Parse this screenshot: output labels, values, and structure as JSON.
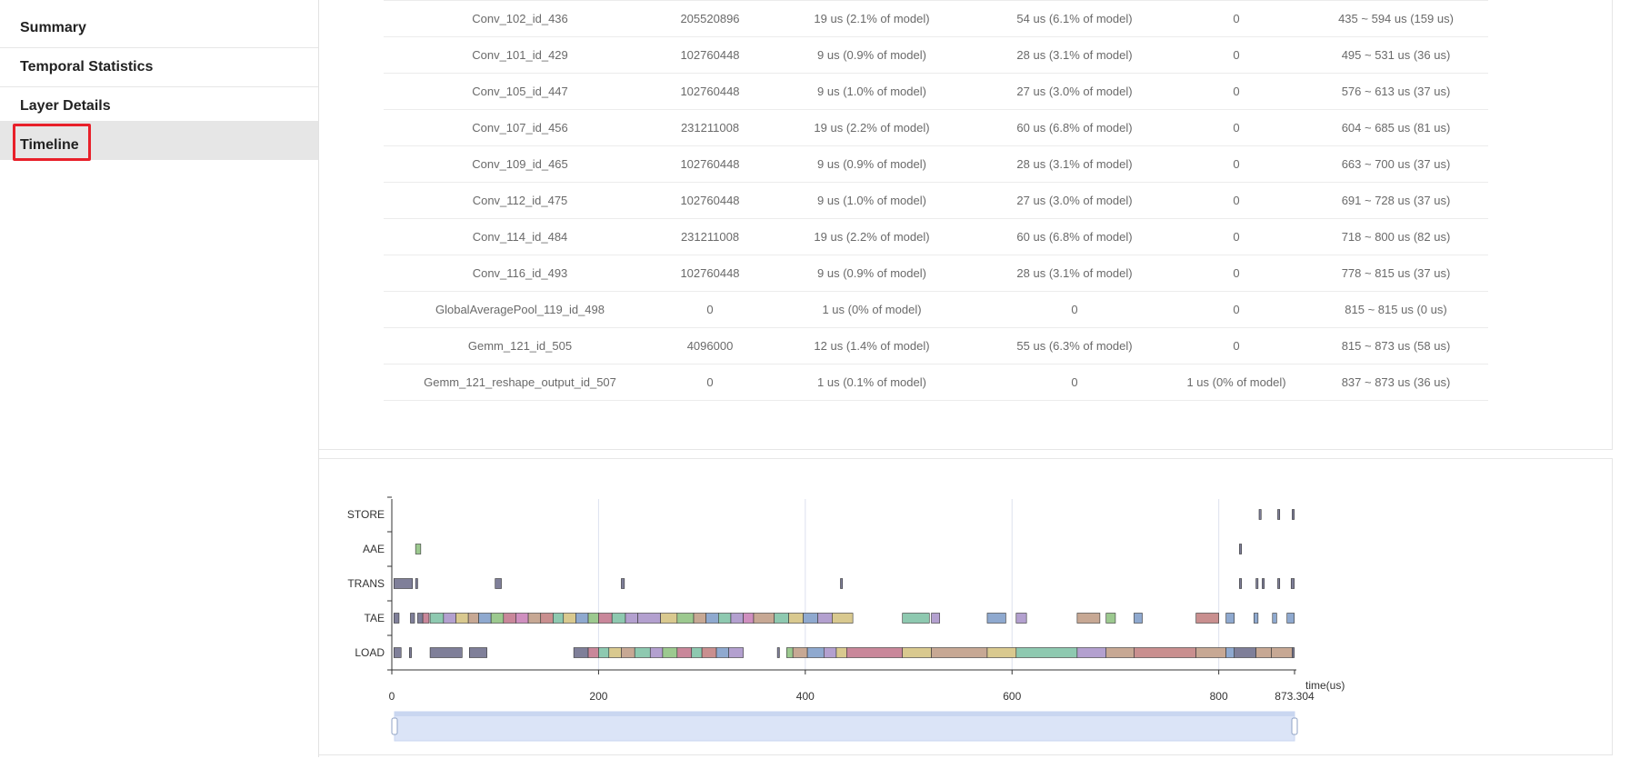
{
  "sidebar": {
    "items": [
      {
        "label": "Summary"
      },
      {
        "label": "Temporal Statistics"
      },
      {
        "label": "Layer Details"
      },
      {
        "label": "Timeline"
      }
    ],
    "active_index": 3
  },
  "layer_table": {
    "rows": [
      [
        "Conv_102_id_436",
        "205520896",
        "19 us (2.1% of model)",
        "54 us (6.1% of model)",
        "0",
        "435 ~ 594 us (159 us)"
      ],
      [
        "Conv_101_id_429",
        "102760448",
        "9 us (0.9% of model)",
        "28 us (3.1% of model)",
        "0",
        "495 ~ 531 us (36 us)"
      ],
      [
        "Conv_105_id_447",
        "102760448",
        "9 us (1.0% of model)",
        "27 us (3.0% of model)",
        "0",
        "576 ~ 613 us (37 us)"
      ],
      [
        "Conv_107_id_456",
        "231211008",
        "19 us (2.2% of model)",
        "60 us (6.8% of model)",
        "0",
        "604 ~ 685 us (81 us)"
      ],
      [
        "Conv_109_id_465",
        "102760448",
        "9 us (0.9% of model)",
        "28 us (3.1% of model)",
        "0",
        "663 ~ 700 us (37 us)"
      ],
      [
        "Conv_112_id_475",
        "102760448",
        "9 us (1.0% of model)",
        "27 us (3.0% of model)",
        "0",
        "691 ~ 728 us (37 us)"
      ],
      [
        "Conv_114_id_484",
        "231211008",
        "19 us (2.2% of model)",
        "60 us (6.8% of model)",
        "0",
        "718 ~ 800 us (82 us)"
      ],
      [
        "Conv_116_id_493",
        "102760448",
        "9 us (0.9% of model)",
        "28 us (3.1% of model)",
        "0",
        "778 ~ 815 us (37 us)"
      ],
      [
        "GlobalAveragePool_119_id_498",
        "0",
        "1 us (0% of model)",
        "0",
        "0",
        "815 ~ 815 us (0 us)"
      ],
      [
        "Gemm_121_id_505",
        "4096000",
        "12 us (1.4% of model)",
        "55 us (6.3% of model)",
        "0",
        "815 ~ 873 us (58 us)"
      ],
      [
        "Gemm_121_reshape_output_id_507",
        "0",
        "1 us (0.1% of model)",
        "0",
        "1 us (0% of model)",
        "837 ~ 873 us (36 us)"
      ]
    ]
  },
  "timeline": {
    "xaxis_name": "time(us)",
    "tick_labels": [
      "0",
      "200",
      "400",
      "600",
      "800",
      "873.304"
    ],
    "tick_values": [
      0,
      200,
      400,
      600,
      800,
      873.304
    ],
    "x_max": 873.304,
    "lanes": [
      "STORE",
      "AAE",
      "TRANS",
      "TAE",
      "LOAD"
    ],
    "palette": [
      "#7f7f99",
      "#c9879a",
      "#8ec9b0",
      "#b3a0cf",
      "#d9c98f",
      "#c7a894",
      "#8fa9cf",
      "#9cc98f",
      "#cf8fbf",
      "#c98f8f",
      "#8fbfc9",
      "#b5c98f"
    ],
    "bars": {
      "STORE": [
        [
          839,
          841
        ],
        [
          857,
          859
        ],
        [
          871,
          873
        ]
      ],
      "AAE": [
        [
          23,
          28,
          7
        ],
        [
          820,
          822,
          0
        ]
      ],
      "TRANS": [
        [
          2,
          20,
          0
        ],
        [
          23,
          25,
          0
        ],
        [
          100,
          106,
          0
        ],
        [
          222,
          225,
          0
        ],
        [
          434,
          436,
          0
        ],
        [
          820,
          822,
          0
        ],
        [
          836,
          838,
          0
        ],
        [
          842,
          844,
          0
        ],
        [
          857,
          859,
          0
        ],
        [
          870,
          873,
          0
        ]
      ],
      "TAE": [
        [
          2,
          7,
          0
        ],
        [
          18,
          22,
          0
        ],
        [
          25,
          30,
          0
        ],
        [
          30,
          36,
          1
        ],
        [
          37,
          50,
          2
        ],
        [
          50,
          62,
          3
        ],
        [
          62,
          74,
          4
        ],
        [
          74,
          84,
          5
        ],
        [
          84,
          96,
          6
        ],
        [
          96,
          108,
          7
        ],
        [
          108,
          120,
          1
        ],
        [
          120,
          132,
          8
        ],
        [
          132,
          144,
          5
        ],
        [
          144,
          156,
          9
        ],
        [
          156,
          166,
          2
        ],
        [
          166,
          178,
          4
        ],
        [
          178,
          190,
          6
        ],
        [
          190,
          200,
          7
        ],
        [
          200,
          213,
          1
        ],
        [
          213,
          226,
          2
        ],
        [
          226,
          238,
          3
        ],
        [
          238,
          260,
          3
        ],
        [
          260,
          276,
          4
        ],
        [
          276,
          292,
          7
        ],
        [
          292,
          304,
          5
        ],
        [
          304,
          316,
          6
        ],
        [
          316,
          328,
          2
        ],
        [
          328,
          340,
          3
        ],
        [
          340,
          350,
          8
        ],
        [
          350,
          370,
          5
        ],
        [
          370,
          384,
          2
        ],
        [
          384,
          398,
          4
        ],
        [
          398,
          412,
          6
        ],
        [
          412,
          426,
          3
        ],
        [
          426,
          446,
          4
        ],
        [
          494,
          520,
          2
        ],
        [
          522,
          530,
          3
        ],
        [
          576,
          594,
          6
        ],
        [
          604,
          614,
          3
        ],
        [
          663,
          685,
          5
        ],
        [
          691,
          700,
          7
        ],
        [
          718,
          726,
          6
        ],
        [
          778,
          800,
          9
        ],
        [
          807,
          815,
          6
        ],
        [
          834,
          838,
          6
        ],
        [
          852,
          856,
          6
        ],
        [
          866,
          873,
          6
        ]
      ],
      "LOAD": [
        [
          2,
          9,
          0
        ],
        [
          17,
          19,
          0
        ],
        [
          37,
          68,
          0
        ],
        [
          75,
          92,
          0
        ],
        [
          176,
          190,
          0
        ],
        [
          190,
          200,
          1
        ],
        [
          200,
          210,
          2
        ],
        [
          210,
          222,
          4
        ],
        [
          222,
          235,
          5
        ],
        [
          235,
          250,
          2
        ],
        [
          250,
          262,
          3
        ],
        [
          262,
          276,
          7
        ],
        [
          276,
          290,
          1
        ],
        [
          290,
          300,
          2
        ],
        [
          300,
          314,
          9
        ],
        [
          314,
          326,
          6
        ],
        [
          326,
          340,
          3
        ],
        [
          373,
          375,
          0
        ],
        [
          382,
          388,
          7
        ],
        [
          388,
          402,
          5
        ],
        [
          402,
          418,
          6
        ],
        [
          418,
          430,
          3
        ],
        [
          430,
          440,
          4
        ],
        [
          440,
          494,
          1
        ],
        [
          494,
          522,
          4
        ],
        [
          522,
          576,
          5
        ],
        [
          576,
          604,
          4
        ],
        [
          604,
          663,
          2
        ],
        [
          663,
          691,
          3
        ],
        [
          691,
          718,
          5
        ],
        [
          718,
          778,
          9
        ],
        [
          778,
          807,
          5
        ],
        [
          807,
          815,
          6
        ],
        [
          815,
          836,
          0
        ],
        [
          836,
          851,
          5
        ],
        [
          851,
          871,
          5
        ],
        [
          871,
          873,
          0
        ]
      ]
    }
  }
}
